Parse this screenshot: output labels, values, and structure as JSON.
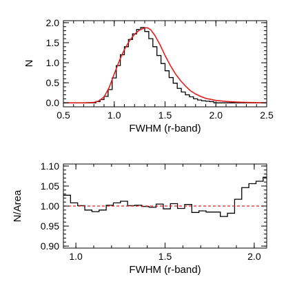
{
  "colors": {
    "axes": "#000000",
    "histogram": "#000000",
    "model_curve": "#e01e1e",
    "reference_line": "#e01e1e",
    "background": "#ffffff"
  },
  "chart_data": [
    {
      "type": "line",
      "panel": "top",
      "title": "",
      "xlabel": "FWHM (r-band)",
      "ylabel": "N",
      "xlim": [
        0.5,
        2.5
      ],
      "ylim": [
        -0.1,
        2.05
      ],
      "x_ticks": [
        0.5,
        1.0,
        1.5,
        2.0,
        2.5
      ],
      "x_tick_labels": [
        "0.5",
        "1.0",
        "1.5",
        "2.0",
        "2.5"
      ],
      "y_ticks": [
        0.0,
        0.5,
        1.0,
        1.5,
        2.0
      ],
      "y_tick_labels": [
        "0.0",
        "0.5",
        "1.0",
        "1.5",
        "2.0"
      ],
      "grid": false,
      "legend": "none",
      "series": [
        {
          "style": "step histogram (black)",
          "bin_edges": [
            0.5,
            0.82,
            0.86,
            0.9,
            0.94,
            0.98,
            1.02,
            1.06,
            1.1,
            1.14,
            1.18,
            1.22,
            1.26,
            1.3,
            1.34,
            1.38,
            1.42,
            1.46,
            1.5,
            1.54,
            1.58,
            1.62,
            1.66,
            1.7,
            1.74,
            1.78,
            1.82,
            1.86,
            1.9,
            1.94,
            1.98,
            2.5
          ],
          "values": [
            0.0,
            0.03,
            0.08,
            0.16,
            0.33,
            0.62,
            0.93,
            1.2,
            1.4,
            1.58,
            1.72,
            1.83,
            1.88,
            1.78,
            1.6,
            1.4,
            1.18,
            0.98,
            0.8,
            0.63,
            0.49,
            0.36,
            0.27,
            0.2,
            0.15,
            0.1,
            0.07,
            0.05,
            0.04,
            0.03,
            0.0
          ]
        },
        {
          "style": "smooth curve (red)",
          "x": [
            0.5,
            0.7,
            0.8,
            0.85,
            0.9,
            0.95,
            1.0,
            1.05,
            1.1,
            1.15,
            1.2,
            1.25,
            1.3,
            1.33,
            1.36,
            1.4,
            1.45,
            1.5,
            1.55,
            1.6,
            1.65,
            1.7,
            1.75,
            1.8,
            1.85,
            1.9,
            2.0,
            2.1,
            2.2,
            2.3,
            2.5
          ],
          "y": [
            0.0,
            0.0,
            0.01,
            0.05,
            0.15,
            0.38,
            0.72,
            1.05,
            1.33,
            1.55,
            1.71,
            1.82,
            1.87,
            1.87,
            1.82,
            1.68,
            1.45,
            1.18,
            0.94,
            0.73,
            0.56,
            0.42,
            0.3,
            0.22,
            0.16,
            0.11,
            0.06,
            0.035,
            0.02,
            0.01,
            0.0
          ]
        }
      ]
    },
    {
      "type": "line",
      "panel": "bottom",
      "title": "",
      "xlabel": "FWHM (r-band)",
      "ylabel": "N/Area",
      "xlim": [
        0.93,
        2.07
      ],
      "ylim": [
        0.895,
        1.105
      ],
      "x_ticks": [
        1.0,
        1.5,
        2.0
      ],
      "x_tick_labels": [
        "1.0",
        "1.5",
        "2.0"
      ],
      "y_ticks": [
        0.9,
        0.95,
        1.0,
        1.05,
        1.1
      ],
      "y_tick_labels": [
        "0.90",
        "0.95",
        "1.00",
        "1.05",
        "1.10"
      ],
      "grid": false,
      "legend": "none",
      "series": [
        {
          "style": "step histogram (black)",
          "bin_edges": [
            0.93,
            0.97,
            1.01,
            1.05,
            1.09,
            1.13,
            1.17,
            1.21,
            1.25,
            1.29,
            1.33,
            1.37,
            1.41,
            1.45,
            1.49,
            1.53,
            1.57,
            1.61,
            1.65,
            1.69,
            1.73,
            1.77,
            1.81,
            1.85,
            1.89,
            1.93,
            1.97,
            2.01,
            2.05,
            2.07
          ],
          "values": [
            1.027,
            1.008,
            1.001,
            0.99,
            0.986,
            0.99,
            1.002,
            1.008,
            1.012,
            1.001,
            1.002,
            0.999,
            0.997,
            1.005,
            0.993,
            1.006,
            0.994,
            1.004,
            0.984,
            0.988,
            0.985,
            0.985,
            0.974,
            0.982,
            1.017,
            1.046,
            1.056,
            1.062,
            1.072
          ]
        },
        {
          "style": "dashed reference line (red)",
          "x": [
            0.93,
            2.07
          ],
          "y": [
            1.0,
            1.0
          ]
        }
      ]
    }
  ]
}
